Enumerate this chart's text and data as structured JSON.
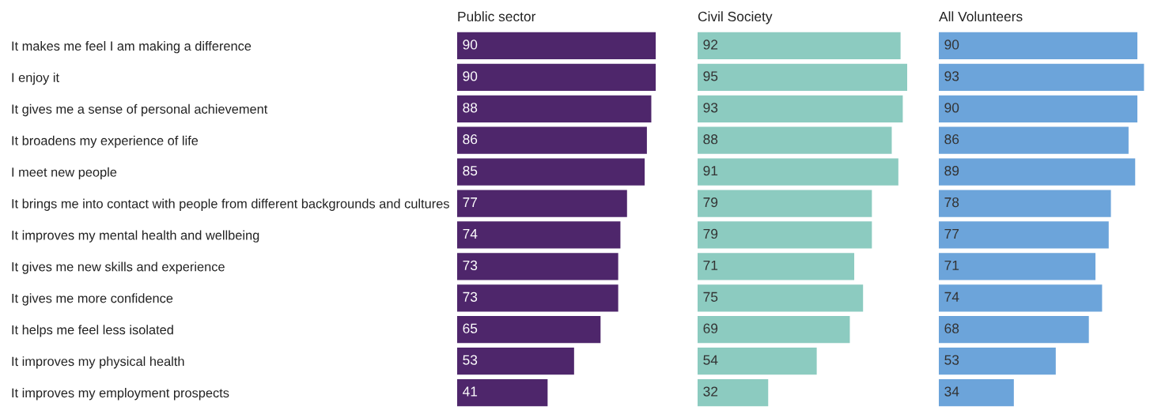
{
  "chart_data": [
    {
      "type": "bar",
      "orientation": "horizontal",
      "title": "Public sector",
      "categories": [
        "It makes me feel I am making a difference",
        "I enjoy it",
        "It gives me a sense of personal achievement",
        "It broadens my experience of life",
        "I meet new people",
        "It brings me into contact with people from different backgrounds and cultures",
        "It improves my mental health and wellbeing",
        "It gives me new skills and experience",
        "It gives me more confidence",
        "It helps me feel less isolated",
        "It improves my physical health",
        "It improves my employment prospects"
      ],
      "values": [
        90,
        90,
        88,
        86,
        85,
        77,
        74,
        73,
        73,
        65,
        53,
        41
      ],
      "color": "#4e266b",
      "data_labels": true,
      "tick_labels": "y",
      "grid": false
    },
    {
      "type": "bar",
      "orientation": "horizontal",
      "title": "Civil Society",
      "values": [
        92,
        95,
        93,
        88,
        91,
        79,
        79,
        71,
        75,
        69,
        54,
        32
      ],
      "color": "#8ccbc0",
      "data_labels": true,
      "tick_labels": false,
      "grid": false
    },
    {
      "type": "bar",
      "orientation": "horizontal",
      "title": "All Volunteers",
      "values": [
        90,
        93,
        90,
        86,
        89,
        78,
        77,
        71,
        74,
        68,
        53,
        34
      ],
      "color": "#6ca4da",
      "data_labels": true,
      "tick_labels": false,
      "grid": false
    }
  ]
}
